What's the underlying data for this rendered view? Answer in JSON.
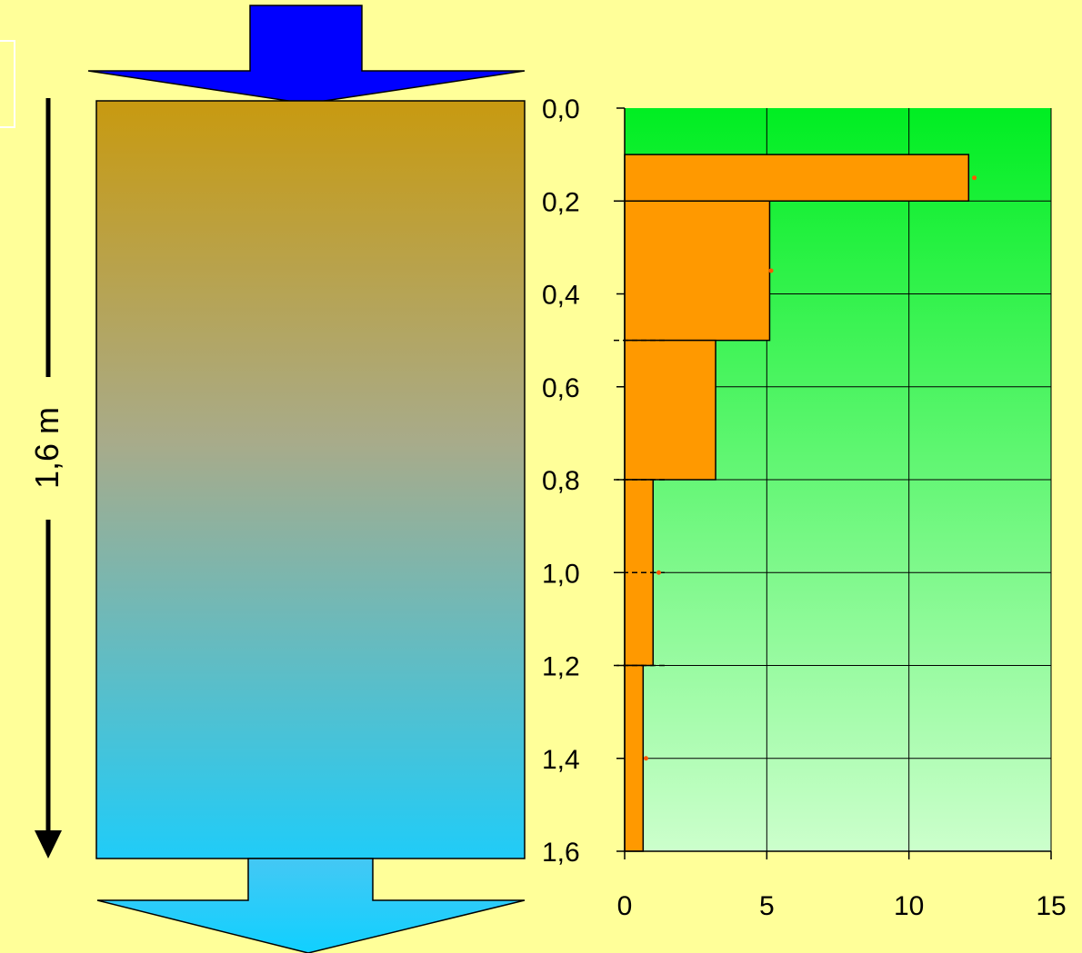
{
  "scale_label": "1,6 m",
  "colors": {
    "background": "#ffff99",
    "inflow_arrow": "#0000ff",
    "column_top": "#c89a10",
    "column_mid": "#a8ab8a",
    "column_bottom": "#20ccf8",
    "outflow_arrow_top": "#44c8f4",
    "outflow_arrow_bottom": "#10d0ff",
    "plot_top": "#00ee22",
    "plot_bottom": "#ccffcc",
    "bars": "#ff9900",
    "marker": "#ff5500"
  },
  "icons": {
    "inflow": "down-arrow-icon",
    "outflow": "down-arrow-icon",
    "depth_direction": "down-arrow-icon"
  },
  "chart_data": {
    "type": "bar",
    "orientation": "horizontal-step",
    "title": "",
    "xlabel": "",
    "ylabel": "",
    "xlim": [
      0,
      15
    ],
    "ylim": [
      0,
      1.6
    ],
    "y_inverted": true,
    "grid": true,
    "x_ticks": [
      "0",
      "5",
      "10",
      "15"
    ],
    "y_ticks": [
      "0,0",
      "0,2",
      "0,4",
      "0,6",
      "0,8",
      "1,0",
      "1,2",
      "1,4",
      "1,6"
    ],
    "x_tick_values": [
      0,
      5,
      10,
      15
    ],
    "y_tick_values": [
      0,
      0.2,
      0.4,
      0.6,
      0.8,
      1.0,
      1.2,
      1.4,
      1.6
    ],
    "layers": [
      {
        "depth_from": 0.1,
        "depth_to": 0.2,
        "value": 12.1
      },
      {
        "depth_from": 0.2,
        "depth_to": 0.5,
        "value": 5.1
      },
      {
        "depth_from": 0.5,
        "depth_to": 0.8,
        "value": 3.2
      },
      {
        "depth_from": 0.8,
        "depth_to": 1.2,
        "value": 1.0
      },
      {
        "depth_from": 1.2,
        "depth_to": 1.6,
        "value": 0.65
      }
    ],
    "dashed_boundaries": [
      0.2,
      0.5,
      0.8,
      1.0,
      1.2
    ],
    "markers": [
      {
        "x": 12.3,
        "y": 0.15
      },
      {
        "x": 5.15,
        "y": 0.35
      },
      {
        "x": 1.2,
        "y": 1.0
      },
      {
        "x": 0.75,
        "y": 1.4
      }
    ]
  }
}
